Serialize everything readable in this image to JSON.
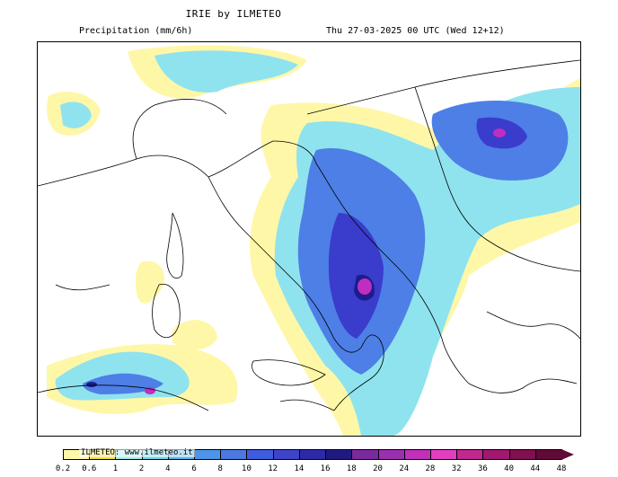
{
  "header": {
    "title": "IRIE by ILMETEO",
    "parameter": "Precipitation (mm/6h)",
    "timestamp": "Thu 27-03-2025 00 UTC (Wed 12+12)"
  },
  "watermark": "ILMETEO: www.ilmeteo.it",
  "colorbar": {
    "labels": [
      "0.2",
      "0.6",
      "1",
      "2",
      "4",
      "6",
      "8",
      "10",
      "12",
      "14",
      "16",
      "18",
      "20",
      "24",
      "28",
      "32",
      "36",
      "40",
      "44",
      "48"
    ],
    "colors": [
      "#fff7a8",
      "#f5e23c",
      "#a6ecef",
      "#6fd6e8",
      "#5ab4ec",
      "#4d95e8",
      "#4c78e0",
      "#3f5cdc",
      "#3e44c8",
      "#2d2aa8",
      "#201a80",
      "#7b2a9e",
      "#9a2fb0",
      "#c030b8",
      "#e040c0",
      "#c02890",
      "#a01870",
      "#801050",
      "#600a38"
    ]
  },
  "map": {
    "region": "Italy and the Balkans",
    "colors": {
      "sea": "#ffffff",
      "coast": "#000000",
      "light": "#fff7a8",
      "yellow": "#f5e23c",
      "cyan": "#8fe3ee",
      "sky": "#6fc4ee",
      "blue": "#4d7fe6",
      "indigo": "#3a3ccc",
      "navy": "#1c1c8a",
      "magenta": "#c02ec0"
    }
  }
}
